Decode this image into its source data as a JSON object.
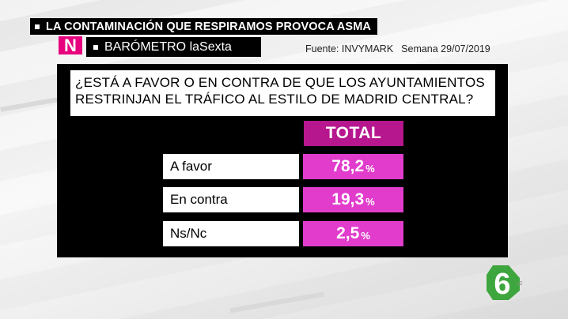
{
  "header": {
    "topic": "LA CONTAMINACIÓN QUE RESPIRAMOS PROVOCA ASMA",
    "logo_letter": "N",
    "program": "BARÓMETRO laSexta",
    "source": "Fuente: INVYMARK",
    "week": "Semana 29/07/2019"
  },
  "question": {
    "line1": "¿ESTÁ A FAVOR O EN CONTRA DE QUE LOS AYUNTAMIENTOS",
    "line2": "RESTRINJAN EL TRÁFICO AL ESTILO DE MADRID CENTRAL?"
  },
  "chart_data": {
    "type": "table",
    "column_header": "TOTAL",
    "unit": "%",
    "categories": [
      "A favor",
      "En contra",
      "Ns/Nc"
    ],
    "values": [
      78.2,
      19.3,
      2.5
    ],
    "value_labels": [
      "78,2",
      "19,3",
      "2,5"
    ]
  },
  "colors": {
    "header_magenta": "#b6178f",
    "value_magenta": "#e13ccc",
    "brand_pink": "#e6007e",
    "channel_green": "#3ea63e"
  },
  "channel": {
    "logo_digit": "6",
    "mark": "x2"
  }
}
